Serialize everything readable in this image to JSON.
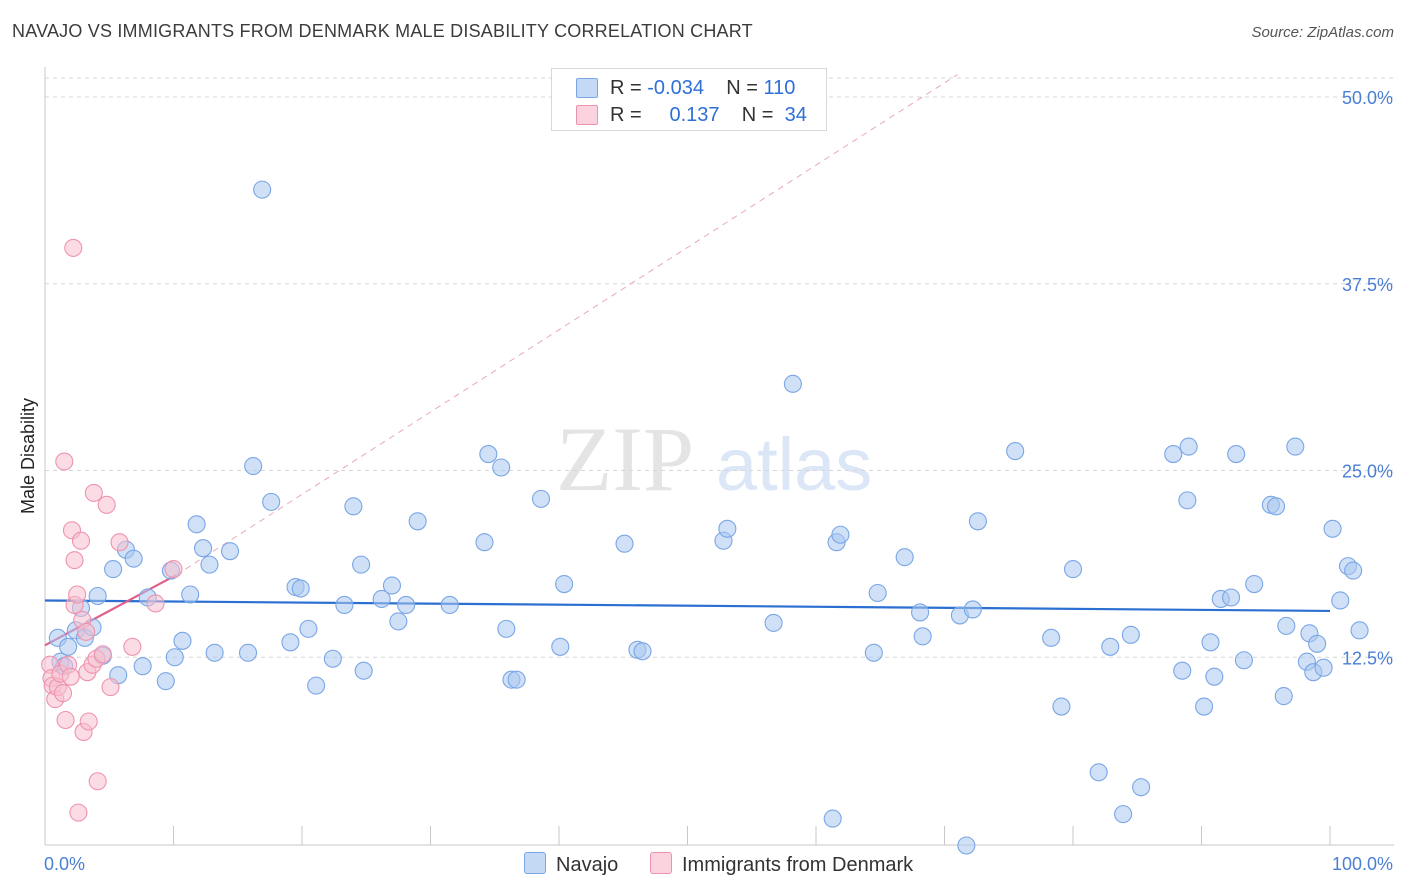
{
  "title": "NAVAJO VS IMMIGRANTS FROM DENMARK MALE DISABILITY CORRELATION CHART",
  "source": "Source: ZipAtlas.com",
  "watermark": {
    "zip": "ZIP",
    "atlas": "atlas"
  },
  "legend_top": {
    "rows": [
      {
        "r_label": "R =",
        "r_value": "-0.034",
        "n_label": "N =",
        "n_value": "110",
        "color": "#a9c8f0",
        "border": "#7aa6e6"
      },
      {
        "r_label": "R =",
        "r_value": "0.137",
        "n_label": "N =",
        "n_value": "34",
        "color": "#f8c0d0",
        "border": "#ee93ad"
      }
    ]
  },
  "legend_bottom": [
    {
      "label": "Navajo",
      "color": "#a9c8f0",
      "border": "#7aa6e6"
    },
    {
      "label": "Immigrants from Denmark",
      "color": "#f8c0d0",
      "border": "#ee93ad"
    }
  ],
  "chart_data": {
    "type": "scatter",
    "title": "NAVAJO VS IMMIGRANTS FROM DENMARK MALE DISABILITY CORRELATION CHART",
    "xlabel": "",
    "ylabel": "Male Disability",
    "xlim": [
      0,
      100
    ],
    "ylim": [
      0,
      52.0
    ],
    "x_tick_labels": [
      "0.0%",
      "100.0%"
    ],
    "y_ticks": [
      12.5,
      25.0,
      37.5,
      50.0
    ],
    "y_tick_labels": [
      "12.5%",
      "25.0%",
      "37.5%",
      "50.0%"
    ],
    "grid": true,
    "series": [
      {
        "name": "Navajo",
        "color": "#a9c8f0",
        "stroke": "#7aa6e6",
        "trend": {
          "x0": 0,
          "y0": 16.3,
          "x1": 100,
          "y1": 15.6,
          "color": "#2a6fd1"
        },
        "points": [
          [
            1.0,
            13.8
          ],
          [
            1.2,
            12.2
          ],
          [
            1.5,
            11.9
          ],
          [
            1.8,
            13.2
          ],
          [
            2.4,
            14.3
          ],
          [
            2.8,
            15.8
          ],
          [
            3.1,
            13.8
          ],
          [
            3.7,
            14.5
          ],
          [
            4.1,
            16.6
          ],
          [
            4.5,
            12.6
          ],
          [
            5.3,
            18.4
          ],
          [
            5.7,
            11.3
          ],
          [
            6.3,
            19.7
          ],
          [
            6.9,
            19.1
          ],
          [
            7.6,
            11.9
          ],
          [
            8.0,
            16.5
          ],
          [
            9.4,
            10.9
          ],
          [
            9.8,
            18.3
          ],
          [
            10.1,
            12.5
          ],
          [
            10.7,
            13.6
          ],
          [
            11.3,
            16.7
          ],
          [
            11.8,
            21.4
          ],
          [
            12.3,
            19.8
          ],
          [
            12.8,
            18.7
          ],
          [
            13.2,
            12.8
          ],
          [
            14.4,
            19.6
          ],
          [
            15.8,
            12.8
          ],
          [
            16.2,
            25.3
          ],
          [
            16.9,
            43.8
          ],
          [
            17.6,
            22.9
          ],
          [
            19.1,
            13.5
          ],
          [
            19.5,
            17.2
          ],
          [
            19.9,
            17.1
          ],
          [
            20.5,
            14.4
          ],
          [
            21.1,
            10.6
          ],
          [
            22.4,
            12.4
          ],
          [
            23.3,
            16.0
          ],
          [
            24.0,
            22.6
          ],
          [
            24.6,
            18.7
          ],
          [
            24.8,
            11.6
          ],
          [
            26.2,
            16.4
          ],
          [
            27.0,
            17.3
          ],
          [
            27.5,
            14.9
          ],
          [
            28.1,
            16.0
          ],
          [
            29.0,
            21.6
          ],
          [
            31.5,
            16.0
          ],
          [
            34.2,
            20.2
          ],
          [
            34.5,
            26.1
          ],
          [
            35.5,
            25.2
          ],
          [
            35.9,
            14.4
          ],
          [
            36.3,
            11.0
          ],
          [
            36.7,
            11.0
          ],
          [
            38.6,
            23.1
          ],
          [
            40.1,
            13.2
          ],
          [
            40.4,
            17.4
          ],
          [
            45.1,
            20.1
          ],
          [
            46.1,
            13.0
          ],
          [
            46.5,
            12.9
          ],
          [
            52.8,
            20.3
          ],
          [
            53.1,
            21.1
          ],
          [
            56.7,
            14.8
          ],
          [
            58.2,
            30.8
          ],
          [
            61.3,
            1.7
          ],
          [
            61.6,
            20.2
          ],
          [
            61.9,
            20.7
          ],
          [
            64.5,
            12.8
          ],
          [
            64.8,
            16.8
          ],
          [
            66.9,
            19.2
          ],
          [
            68.1,
            15.5
          ],
          [
            68.3,
            13.9
          ],
          [
            71.2,
            15.3
          ],
          [
            71.7,
            -0.1
          ],
          [
            72.6,
            21.6
          ],
          [
            75.5,
            26.3
          ],
          [
            78.3,
            13.8
          ],
          [
            79.1,
            9.2
          ],
          [
            80.0,
            18.4
          ],
          [
            82.0,
            4.8
          ],
          [
            82.9,
            13.2
          ],
          [
            83.9,
            2.0
          ],
          [
            84.5,
            14.0
          ],
          [
            85.3,
            3.8
          ],
          [
            87.8,
            26.1
          ],
          [
            88.5,
            11.6
          ],
          [
            88.9,
            23.0
          ],
          [
            89.0,
            26.6
          ],
          [
            90.2,
            9.2
          ],
          [
            90.7,
            13.5
          ],
          [
            91.0,
            11.2
          ],
          [
            91.5,
            16.4
          ],
          [
            92.3,
            16.5
          ],
          [
            92.7,
            26.1
          ],
          [
            93.3,
            12.3
          ],
          [
            94.1,
            17.4
          ],
          [
            95.4,
            22.7
          ],
          [
            95.8,
            22.6
          ],
          [
            96.4,
            9.9
          ],
          [
            96.6,
            14.6
          ],
          [
            97.3,
            26.6
          ],
          [
            98.2,
            12.2
          ],
          [
            98.4,
            14.1
          ],
          [
            98.7,
            11.5
          ],
          [
            99.0,
            13.4
          ],
          [
            99.5,
            11.8
          ],
          [
            100.2,
            21.1
          ],
          [
            100.8,
            16.3
          ],
          [
            101.4,
            18.6
          ],
          [
            101.8,
            18.3
          ],
          [
            102.3,
            14.3
          ],
          [
            72.2,
            15.7
          ]
        ]
      },
      {
        "name": "Immigrants from Denmark",
        "color": "#f8c0d0",
        "stroke": "#ee93ad",
        "trend": {
          "x0": 0,
          "y0": 13.3,
          "x1": 10.2,
          "y1": 18.0,
          "color": "#e0608a"
        },
        "trend_extension": {
          "x0": 10.2,
          "y0": 18.0,
          "x1": 71.0,
          "y1": 51.5
        },
        "points": [
          [
            0.4,
            12.0
          ],
          [
            0.5,
            11.1
          ],
          [
            0.6,
            10.6
          ],
          [
            0.8,
            9.7
          ],
          [
            1.0,
            10.5
          ],
          [
            1.2,
            11.4
          ],
          [
            1.4,
            10.1
          ],
          [
            1.5,
            25.6
          ],
          [
            1.6,
            8.3
          ],
          [
            1.8,
            12.0
          ],
          [
            2.0,
            11.2
          ],
          [
            2.1,
            21.0
          ],
          [
            2.2,
            39.9
          ],
          [
            2.3,
            16.0
          ],
          [
            2.3,
            19.0
          ],
          [
            2.5,
            16.7
          ],
          [
            2.6,
            2.1
          ],
          [
            2.8,
            20.3
          ],
          [
            2.9,
            15.0
          ],
          [
            3.0,
            7.5
          ],
          [
            3.2,
            14.2
          ],
          [
            3.3,
            11.5
          ],
          [
            3.4,
            8.2
          ],
          [
            3.7,
            12.0
          ],
          [
            3.8,
            23.5
          ],
          [
            4.0,
            12.4
          ],
          [
            4.1,
            4.2
          ],
          [
            4.5,
            12.7
          ],
          [
            4.8,
            22.7
          ],
          [
            5.1,
            10.5
          ],
          [
            5.8,
            20.2
          ],
          [
            6.8,
            13.2
          ],
          [
            8.6,
            16.1
          ],
          [
            10.0,
            18.4
          ]
        ]
      }
    ]
  }
}
